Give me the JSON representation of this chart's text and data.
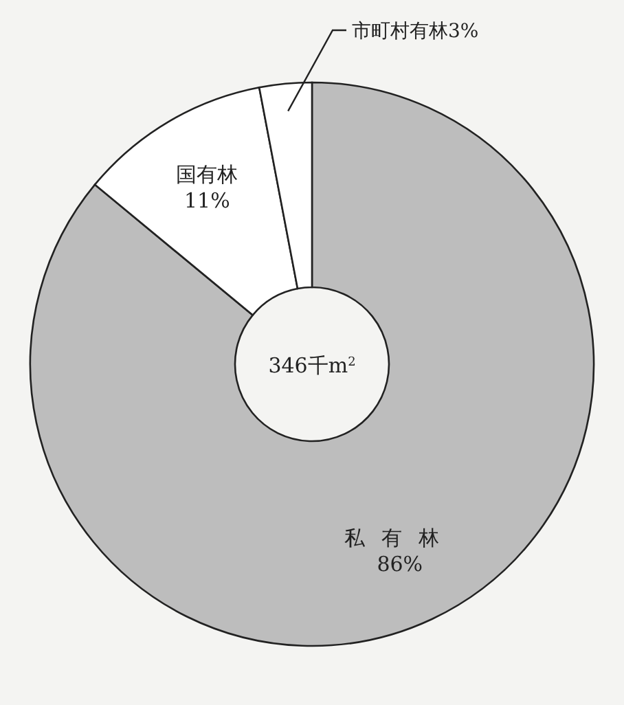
{
  "chart_data": {
    "type": "donut",
    "categories": [
      "私有林",
      "国有林",
      "市町村有林"
    ],
    "values": [
      86,
      11,
      3
    ],
    "colors": [
      "#bdbdbd",
      "#ffffff",
      "#ffffff"
    ],
    "value_labels": [
      "86%",
      "11%",
      "3%"
    ],
    "annotations": [
      "346千m$^{2}$"
    ]
  }
}
